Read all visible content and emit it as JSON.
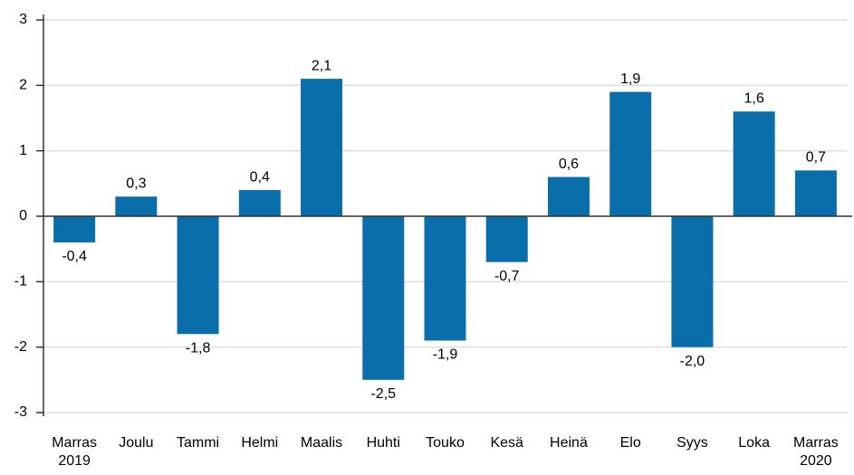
{
  "chart_data": {
    "type": "bar",
    "categories": [
      "Marras 2019",
      "Joulu",
      "Tammi",
      "Helmi",
      "Maalis",
      "Huhti",
      "Touko",
      "Kesä",
      "Heinä",
      "Elo",
      "Syys",
      "Loka",
      "Marras 2020"
    ],
    "values": [
      -0.4,
      0.3,
      -1.8,
      0.4,
      2.1,
      -2.5,
      -1.9,
      -0.7,
      0.6,
      1.9,
      -2.0,
      1.6,
      0.7
    ],
    "value_labels": [
      "-0,4",
      "0,3",
      "-1,8",
      "0,4",
      "2,1",
      "-2,5",
      "-1,9",
      "-0,7",
      "0,6",
      "1,9",
      "-2,0",
      "1,6",
      "0,7"
    ],
    "color": "#0a6eab",
    "ylim": [
      -3,
      3
    ],
    "yticks": [
      -3,
      -2,
      -1,
      0,
      1,
      2,
      3
    ],
    "grid": true
  }
}
